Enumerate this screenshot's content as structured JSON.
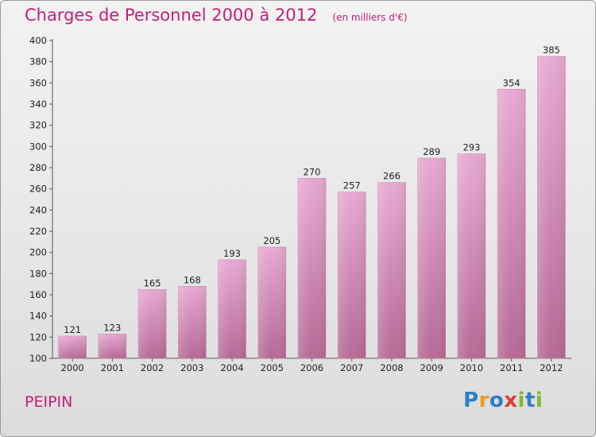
{
  "header": {
    "title": "Charges de Personnel 2000 à 2012",
    "unit": "(en milliers d'€)"
  },
  "footer": {
    "commune": "PEIPIN",
    "logo": "Proxiti"
  },
  "colors": {
    "title": "#c21f78",
    "bar_light": "#e7a9d2",
    "bar_dark": "#b96d99"
  },
  "chart_data": {
    "type": "bar",
    "categories": [
      "2000",
      "2001",
      "2002",
      "2003",
      "2004",
      "2005",
      "2006",
      "2007",
      "2008",
      "2009",
      "2010",
      "2011",
      "2012"
    ],
    "values": [
      121,
      123,
      165,
      168,
      193,
      205,
      270,
      257,
      266,
      289,
      293,
      354,
      385
    ],
    "ylim": [
      100,
      400
    ],
    "yticks": [
      100,
      120,
      140,
      160,
      180,
      200,
      220,
      240,
      260,
      280,
      300,
      320,
      340,
      360,
      380,
      400
    ],
    "grid": false,
    "data_labels": true
  }
}
